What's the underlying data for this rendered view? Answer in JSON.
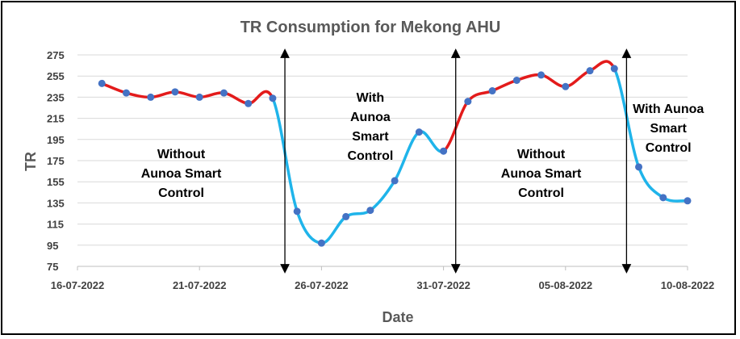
{
  "chart_data": {
    "type": "line",
    "title": "TR Consumption for Mekong AHU",
    "xlabel": "Date",
    "ylabel": "TR",
    "ylim": [
      75,
      275
    ],
    "yticks": [
      75,
      95,
      115,
      135,
      155,
      175,
      195,
      215,
      235,
      255,
      275
    ],
    "xticks": [
      "16-07-2022",
      "21-07-2022",
      "26-07-2022",
      "31-07-2022",
      "05-08-2022",
      "10-08-2022"
    ],
    "grid": true,
    "x": [
      "17-07-2022",
      "18-07-2022",
      "19-07-2022",
      "20-07-2022",
      "21-07-2022",
      "22-07-2022",
      "23-07-2022",
      "24-07-2022",
      "25-07-2022",
      "26-07-2022",
      "27-07-2022",
      "28-07-2022",
      "29-07-2022",
      "30-07-2022",
      "31-07-2022",
      "01-08-2022",
      "02-08-2022",
      "03-08-2022",
      "04-08-2022",
      "05-08-2022",
      "06-08-2022",
      "07-08-2022",
      "08-08-2022",
      "09-08-2022",
      "10-08-2022"
    ],
    "values": [
      248,
      239,
      235,
      240,
      235,
      239,
      229,
      234,
      127,
      97,
      122,
      128,
      156,
      202,
      184,
      231,
      241,
      251,
      256,
      245,
      260,
      262,
      169,
      140,
      137
    ],
    "segments": [
      {
        "from": 0,
        "to": 7,
        "color": "#e31b1b"
      },
      {
        "from": 7,
        "to": 14,
        "color": "#1fb4ea"
      },
      {
        "from": 14,
        "to": 21,
        "color": "#e31b1b"
      },
      {
        "from": 21,
        "to": 24,
        "color": "#1fb4ea"
      }
    ],
    "marker_color": "#4472c4",
    "dividers_between": [
      [
        7,
        8
      ],
      [
        14,
        15
      ],
      [
        21,
        22
      ]
    ],
    "annotations": [
      {
        "lines": [
          "Without",
          "Aunoa Smart",
          "Control"
        ]
      },
      {
        "lines": [
          "With",
          "Aunoa",
          "Smart",
          "Control"
        ]
      },
      {
        "lines": [
          "Without",
          "Aunoa Smart",
          "Control"
        ]
      },
      {
        "lines": [
          "With Aunoa",
          "Smart",
          "Control"
        ]
      }
    ]
  }
}
